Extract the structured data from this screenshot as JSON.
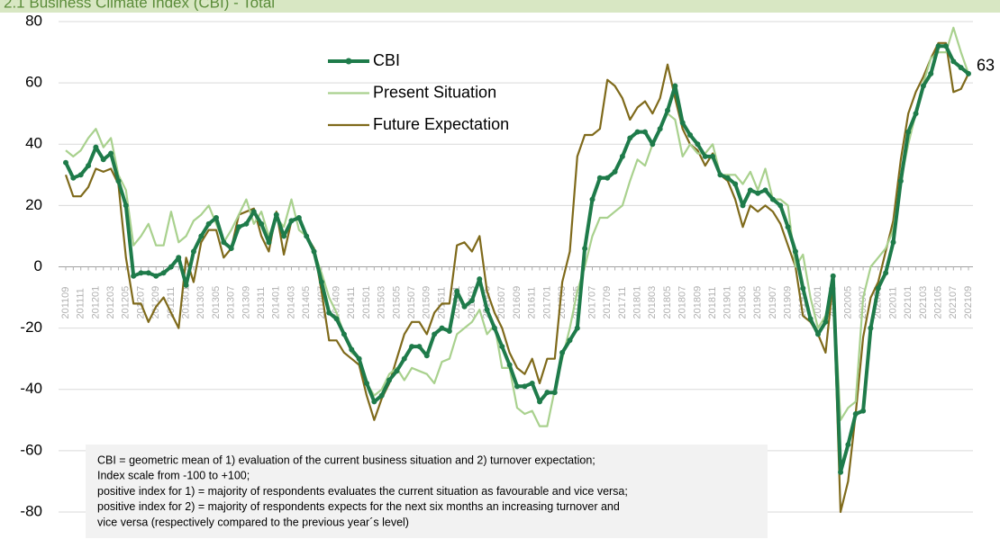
{
  "chart_data": {
    "type": "line",
    "title": "2.1 Business Climate Index (CBI) - Total",
    "annotation": [
      "CBI = geometric mean of 1) evaluation of the current business situation and 2) turnover expectation;",
      "Index scale from -100 to +100;",
      "positive index for 1) = majority of respondents evaluates the current situation as favourable and vice versa;",
      "positive index for 2) = majority of respondents expects for the next six months an increasing turnover and",
      "vice versa (respectively compared to the previous year´s level)"
    ],
    "categories": [
      "201109",
      null,
      "201111",
      null,
      "201201",
      null,
      "201203",
      null,
      "201205",
      null,
      "201207",
      null,
      "201209",
      null,
      "201211",
      null,
      "201301",
      null,
      "201303",
      null,
      "201305",
      null,
      "201307",
      null,
      "201309",
      null,
      "201311",
      null,
      "201401",
      null,
      "201403",
      null,
      "201405",
      null,
      "201407",
      null,
      "201409",
      null,
      "201411",
      null,
      "201501",
      null,
      "201503",
      null,
      "201505",
      null,
      "201507",
      null,
      "201509",
      null,
      "201511",
      null,
      "201601",
      null,
      "201603",
      null,
      "201605",
      null,
      "201607",
      null,
      "201609",
      null,
      "201611",
      null,
      "201701",
      null,
      "201703",
      null,
      "201705",
      null,
      "201707",
      null,
      "201709",
      null,
      "201711",
      null,
      "201801",
      null,
      "201803",
      null,
      "201805",
      null,
      "201807",
      null,
      "201809",
      null,
      "201811",
      null,
      "201901",
      null,
      "201903",
      null,
      "201905",
      null,
      "201907",
      null,
      "201909",
      null,
      "201911",
      null,
      "202001",
      null,
      "202003",
      null,
      "202005",
      null,
      "202007",
      null,
      "202009",
      null,
      "202011",
      null,
      "202101",
      null,
      "202103",
      null,
      "202105",
      null,
      "202107",
      null,
      "202109"
    ],
    "series": [
      {
        "name": "CBI",
        "color": "#1e7b4a",
        "values": [
          34,
          29,
          30,
          33,
          39,
          35,
          37,
          28,
          20,
          -3,
          -2,
          -2,
          -3,
          -2,
          0,
          3,
          -6,
          5,
          10,
          14,
          16,
          8,
          6,
          13,
          14,
          18,
          14,
          8,
          17,
          10,
          15,
          16,
          10,
          5,
          -5,
          -15,
          -17,
          -22,
          -27,
          -30,
          -38,
          -44,
          -42,
          -37,
          -34,
          -30,
          -26,
          -26,
          -29,
          -22,
          -20,
          -21,
          -8,
          -13,
          -11,
          -4,
          -14,
          -20,
          -26,
          -32,
          -39,
          -39,
          -38,
          -44,
          -41,
          -41,
          -28,
          -24,
          -20,
          6,
          22,
          29,
          29,
          31,
          36,
          42,
          44,
          44,
          40,
          45,
          51,
          59,
          47,
          43,
          40,
          36,
          36,
          30,
          29,
          27,
          20,
          25,
          24,
          25,
          22,
          20,
          13,
          5,
          -7,
          -17,
          -22,
          -18,
          -3,
          -67,
          -58,
          -48,
          -47,
          -20,
          -7,
          -2,
          8,
          28,
          44,
          50,
          59,
          63,
          72,
          72,
          67,
          65,
          63
        ]
      },
      {
        "name": "Present Situation",
        "color": "#a9d18e",
        "values": [
          38,
          36,
          38,
          42,
          45,
          39,
          42,
          30,
          25,
          7,
          10,
          14,
          7,
          7,
          18,
          8,
          10,
          15,
          17,
          20,
          14,
          8,
          12,
          17,
          22,
          14,
          18,
          10,
          16,
          13,
          22,
          12,
          10,
          5,
          -2,
          -10,
          -15,
          -22,
          -28,
          -30,
          -38,
          -42,
          -40,
          -35,
          -33,
          -37,
          -33,
          -34,
          -35,
          -38,
          -31,
          -30,
          -22,
          -20,
          -18,
          -14,
          -22,
          -19,
          -33,
          -33,
          -46,
          -48,
          -47,
          -52,
          -52,
          -40,
          -30,
          -20,
          -8,
          0,
          10,
          16,
          16,
          18,
          20,
          28,
          35,
          33,
          40,
          45,
          50,
          48,
          36,
          40,
          37,
          37,
          40,
          30,
          30,
          30,
          27,
          31,
          25,
          32,
          22,
          22,
          20,
          0,
          4,
          -10,
          -20,
          -16,
          -5,
          -50,
          -46,
          -44,
          -10,
          0,
          3,
          6,
          12,
          28,
          40,
          50,
          60,
          68,
          70,
          70,
          78,
          70,
          63
        ]
      },
      {
        "name": "Future Expectation",
        "color": "#7f6a1b",
        "values": [
          30,
          23,
          23,
          26,
          32,
          31,
          32,
          27,
          3,
          -12,
          -12,
          -18,
          -13,
          -10,
          -15,
          -20,
          3,
          -5,
          8,
          12,
          12,
          3,
          6,
          17,
          18,
          19,
          10,
          5,
          18,
          4,
          15,
          16,
          10,
          6,
          -8,
          -24,
          -24,
          -28,
          -30,
          -32,
          -42,
          -50,
          -43,
          -38,
          -30,
          -22,
          -18,
          -18,
          -22,
          -15,
          -12,
          -12,
          7,
          8,
          5,
          10,
          -8,
          -15,
          -20,
          -28,
          -33,
          -35,
          -30,
          -38,
          -30,
          -30,
          -5,
          5,
          36,
          43,
          43,
          45,
          61,
          59,
          55,
          48,
          52,
          54,
          50,
          55,
          66,
          55,
          45,
          40,
          38,
          33,
          37,
          30,
          28,
          22,
          13,
          20,
          18,
          20,
          18,
          14,
          7,
          0,
          -16,
          -18,
          -22,
          -28,
          -5,
          -80,
          -70,
          -48,
          -23,
          -10,
          -5,
          5,
          15,
          35,
          50,
          57,
          62,
          68,
          73,
          73,
          57,
          58,
          63
        ]
      }
    ],
    "ylim": [
      -80,
      80
    ],
    "yticks": [
      -80,
      -60,
      -40,
      -20,
      0,
      20,
      40,
      60,
      80
    ],
    "grid": true
  }
}
